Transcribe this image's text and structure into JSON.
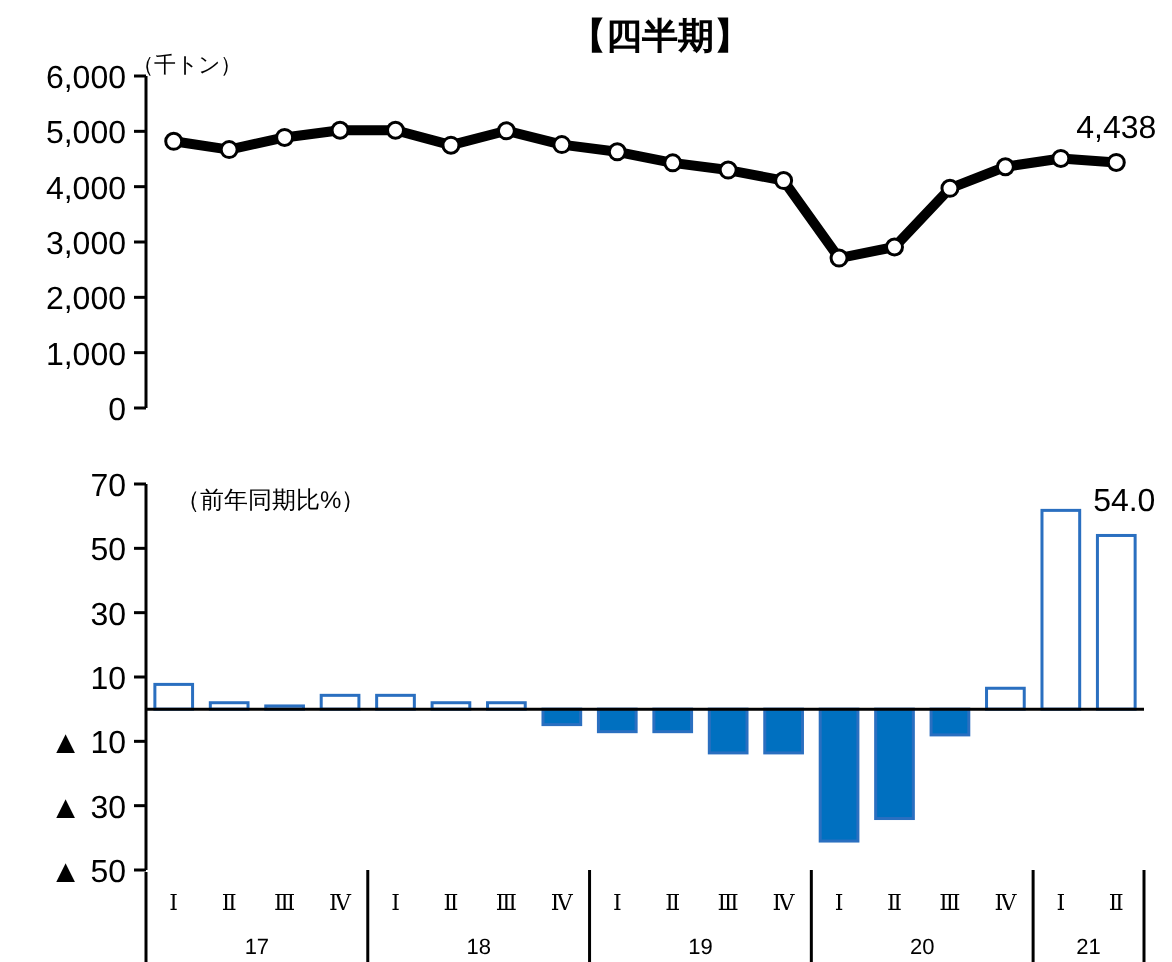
{
  "chart_data": [
    {
      "type": "line",
      "title": "【四半期】",
      "ylabel": "（千トン）",
      "categories": [
        null,
        null,
        null,
        null,
        null,
        null,
        null,
        null,
        null,
        null,
        null,
        null,
        null,
        null,
        null,
        null,
        null,
        null
      ],
      "series": [
        {
          "color": "#000000",
          "values": [
            4820,
            4670,
            4890,
            5020,
            5020,
            4750,
            5010,
            4760,
            4630,
            4430,
            4300,
            4110,
            2710,
            2910,
            3970,
            4360,
            4510,
            4438
          ],
          "value_labels": [
            null,
            null,
            null,
            null,
            null,
            null,
            null,
            null,
            null,
            null,
            null,
            null,
            null,
            null,
            null,
            null,
            null,
            "4,438"
          ]
        }
      ],
      "marker": "circle",
      "line_style": "solid",
      "ylim": [
        0,
        6000
      ],
      "yticks": [
        0,
        {
          "value": 1000,
          "label": "1,000"
        },
        {
          "value": 2000,
          "label": "2,000"
        },
        {
          "value": 3000,
          "label": "3,000"
        },
        {
          "value": 4000,
          "label": "4,000"
        },
        {
          "value": 5000,
          "label": "5,000"
        },
        {
          "value": 6000,
          "label": "6,000"
        }
      ],
      "tick_labels": "y"
    },
    {
      "type": "bar",
      "ylabel": "（前年同期比%）",
      "categories": [
        "Ⅰ",
        "Ⅱ",
        "Ⅲ",
        "Ⅳ",
        "Ⅰ",
        "Ⅱ",
        "Ⅲ",
        "Ⅳ",
        "Ⅰ",
        "Ⅱ",
        "Ⅲ",
        "Ⅳ",
        "Ⅰ",
        "Ⅱ",
        "Ⅲ",
        "Ⅳ",
        "Ⅰ",
        "Ⅱ"
      ],
      "series": [
        {
          "color": "#2a6fc0",
          "values": [
            7.7,
            2.0,
            1.0,
            4.3,
            4.3,
            2.0,
            2.0,
            -4.8,
            -7.0,
            -7.0,
            -13.6,
            -13.6,
            -41,
            -34,
            -8,
            6.5,
            61.8,
            54.0
          ],
          "colors": [
            "#ffffff",
            "#ffffff",
            "#ffffff",
            "#ffffff",
            "#ffffff",
            "#ffffff",
            "#ffffff",
            "#0070c0",
            "#0070c0",
            "#0070c0",
            "#0070c0",
            "#0070c0",
            "#0070c0",
            "#0070c0",
            "#0070c0",
            "#ffffff",
            "#ffffff",
            "#ffffff"
          ],
          "value_labels": [
            null,
            null,
            null,
            null,
            null,
            null,
            null,
            null,
            null,
            null,
            null,
            null,
            null,
            null,
            null,
            null,
            null,
            "54.0"
          ]
        }
      ],
      "ylim": [
        -50,
        70
      ],
      "yticks": [
        {
          "value": -50,
          "label": "▲ 50"
        },
        {
          "value": -30,
          "label": "▲ 30"
        },
        {
          "value": -10,
          "label": "▲ 10"
        },
        10,
        30,
        50,
        70
      ],
      "annotations": [
        "17",
        "18",
        "19",
        "20",
        "21"
      ]
    }
  ]
}
